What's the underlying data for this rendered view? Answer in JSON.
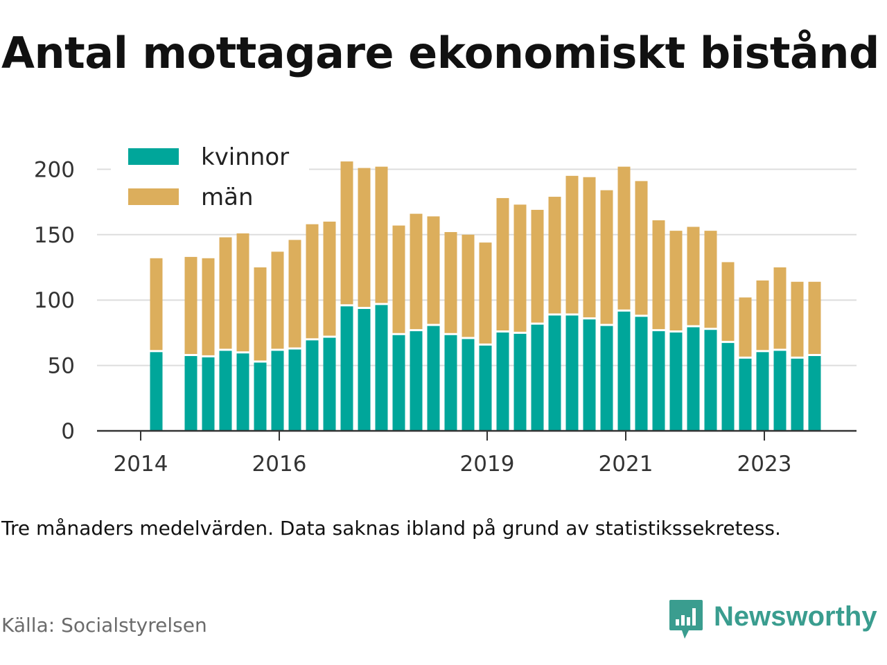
{
  "title": "Antal mottagare ekonomiskt bistånd",
  "note": "Tre månaders medelvärden. Data saknas ibland på grund av statistikssekretess.",
  "source": "Källa: Socialstyrelsen",
  "brand": {
    "name": "Newsworthy",
    "logo_icon": "newsworthy-chart-bubble-icon"
  },
  "colors": {
    "kvinnor": "#00a69a",
    "man": "#dcae5c",
    "grid": "#dddddd",
    "axis": "#333333",
    "brand": "#3a9d8f"
  },
  "chart_data": {
    "type": "bar",
    "stacked": true,
    "legend": [
      "kvinnor",
      "män"
    ],
    "legend_placement": "top-left",
    "grid": true,
    "ylim": [
      0,
      210
    ],
    "yticks": [
      0,
      50,
      100,
      150,
      200
    ],
    "xticks": [
      {
        "label": "2014",
        "pos": -0.9
      },
      {
        "label": "2016",
        "pos": 7.1
      },
      {
        "label": "2019",
        "pos": 19.1
      },
      {
        "label": "2021",
        "pos": 27.1
      },
      {
        "label": "2023",
        "pos": 35.1
      }
    ],
    "categories": [
      "2014 Q2",
      "2014 Q3",
      "2014 Q4",
      "2015 Q1",
      "2015 Q2",
      "2015 Q3",
      "2015 Q4",
      "2016 Q1",
      "2016 Q2",
      "2016 Q3",
      "2016 Q4",
      "2017 Q1",
      "2017 Q2",
      "2017 Q3",
      "2017 Q4",
      "2018 Q1",
      "2018 Q2",
      "2018 Q3",
      "2018 Q4",
      "2019 Q1",
      "2019 Q2",
      "2019 Q3",
      "2019 Q4",
      "2020 Q1",
      "2020 Q2",
      "2020 Q3",
      "2020 Q4",
      "2021 Q1",
      "2021 Q2",
      "2021 Q3",
      "2021 Q4",
      "2022 Q1",
      "2022 Q2",
      "2022 Q3",
      "2022 Q4",
      "2023 Q1",
      "2023 Q2",
      "2023 Q3",
      "2023 Q4"
    ],
    "series": [
      {
        "name": "kvinnor",
        "values": [
          61,
          null,
          58,
          57,
          62,
          60,
          53,
          62,
          63,
          70,
          72,
          96,
          94,
          97,
          74,
          77,
          81,
          74,
          71,
          66,
          76,
          75,
          82,
          89,
          89,
          86,
          81,
          92,
          88,
          77,
          76,
          80,
          78,
          68,
          56,
          61,
          62,
          56,
          58
        ]
      },
      {
        "name": "män",
        "values": [
          71,
          null,
          75,
          75,
          86,
          91,
          72,
          75,
          83,
          88,
          88,
          110,
          107,
          105,
          83,
          89,
          83,
          78,
          79,
          78,
          102,
          98,
          87,
          90,
          106,
          108,
          103,
          110,
          103,
          84,
          77,
          76,
          75,
          61,
          46,
          54,
          63,
          58,
          56
        ]
      }
    ]
  }
}
